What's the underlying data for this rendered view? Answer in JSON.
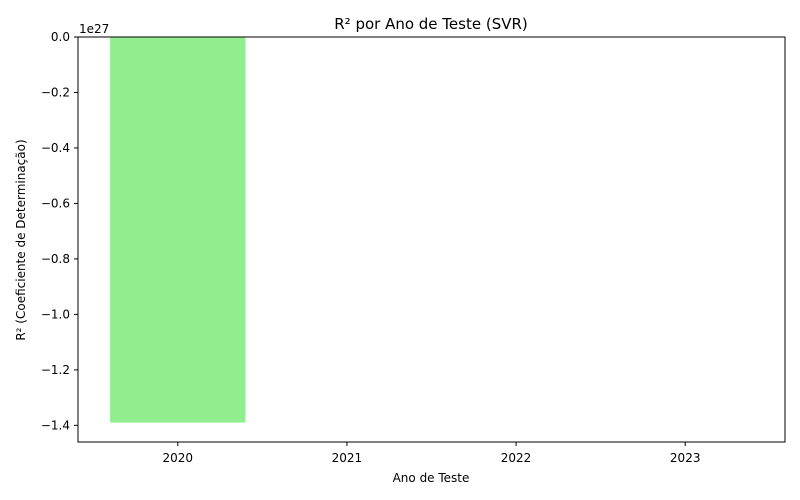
{
  "chart_data": {
    "type": "bar",
    "title": "R² por Ano de Teste (SVR)",
    "xlabel": "Ano de Teste",
    "ylabel": "R² (Coeficiente de Determinação)",
    "categories": [
      "2020",
      "2021",
      "2022",
      "2023"
    ],
    "values": [
      -1.39e+27,
      0,
      0,
      0
    ],
    "ylim": [
      -1.46e+27,
      0
    ],
    "yticks": [
      0,
      -0.2,
      -0.4,
      -0.6,
      -0.8,
      -1.0,
      -1.2,
      -1.4
    ],
    "ytick_labels": [
      "0.0",
      "−0.2",
      "−0.4",
      "−0.6",
      "−0.8",
      "−1.0",
      "−1.2",
      "−1.4"
    ],
    "y_offset_label": "1e27",
    "grid": false,
    "bar_color": "#90ee90"
  }
}
